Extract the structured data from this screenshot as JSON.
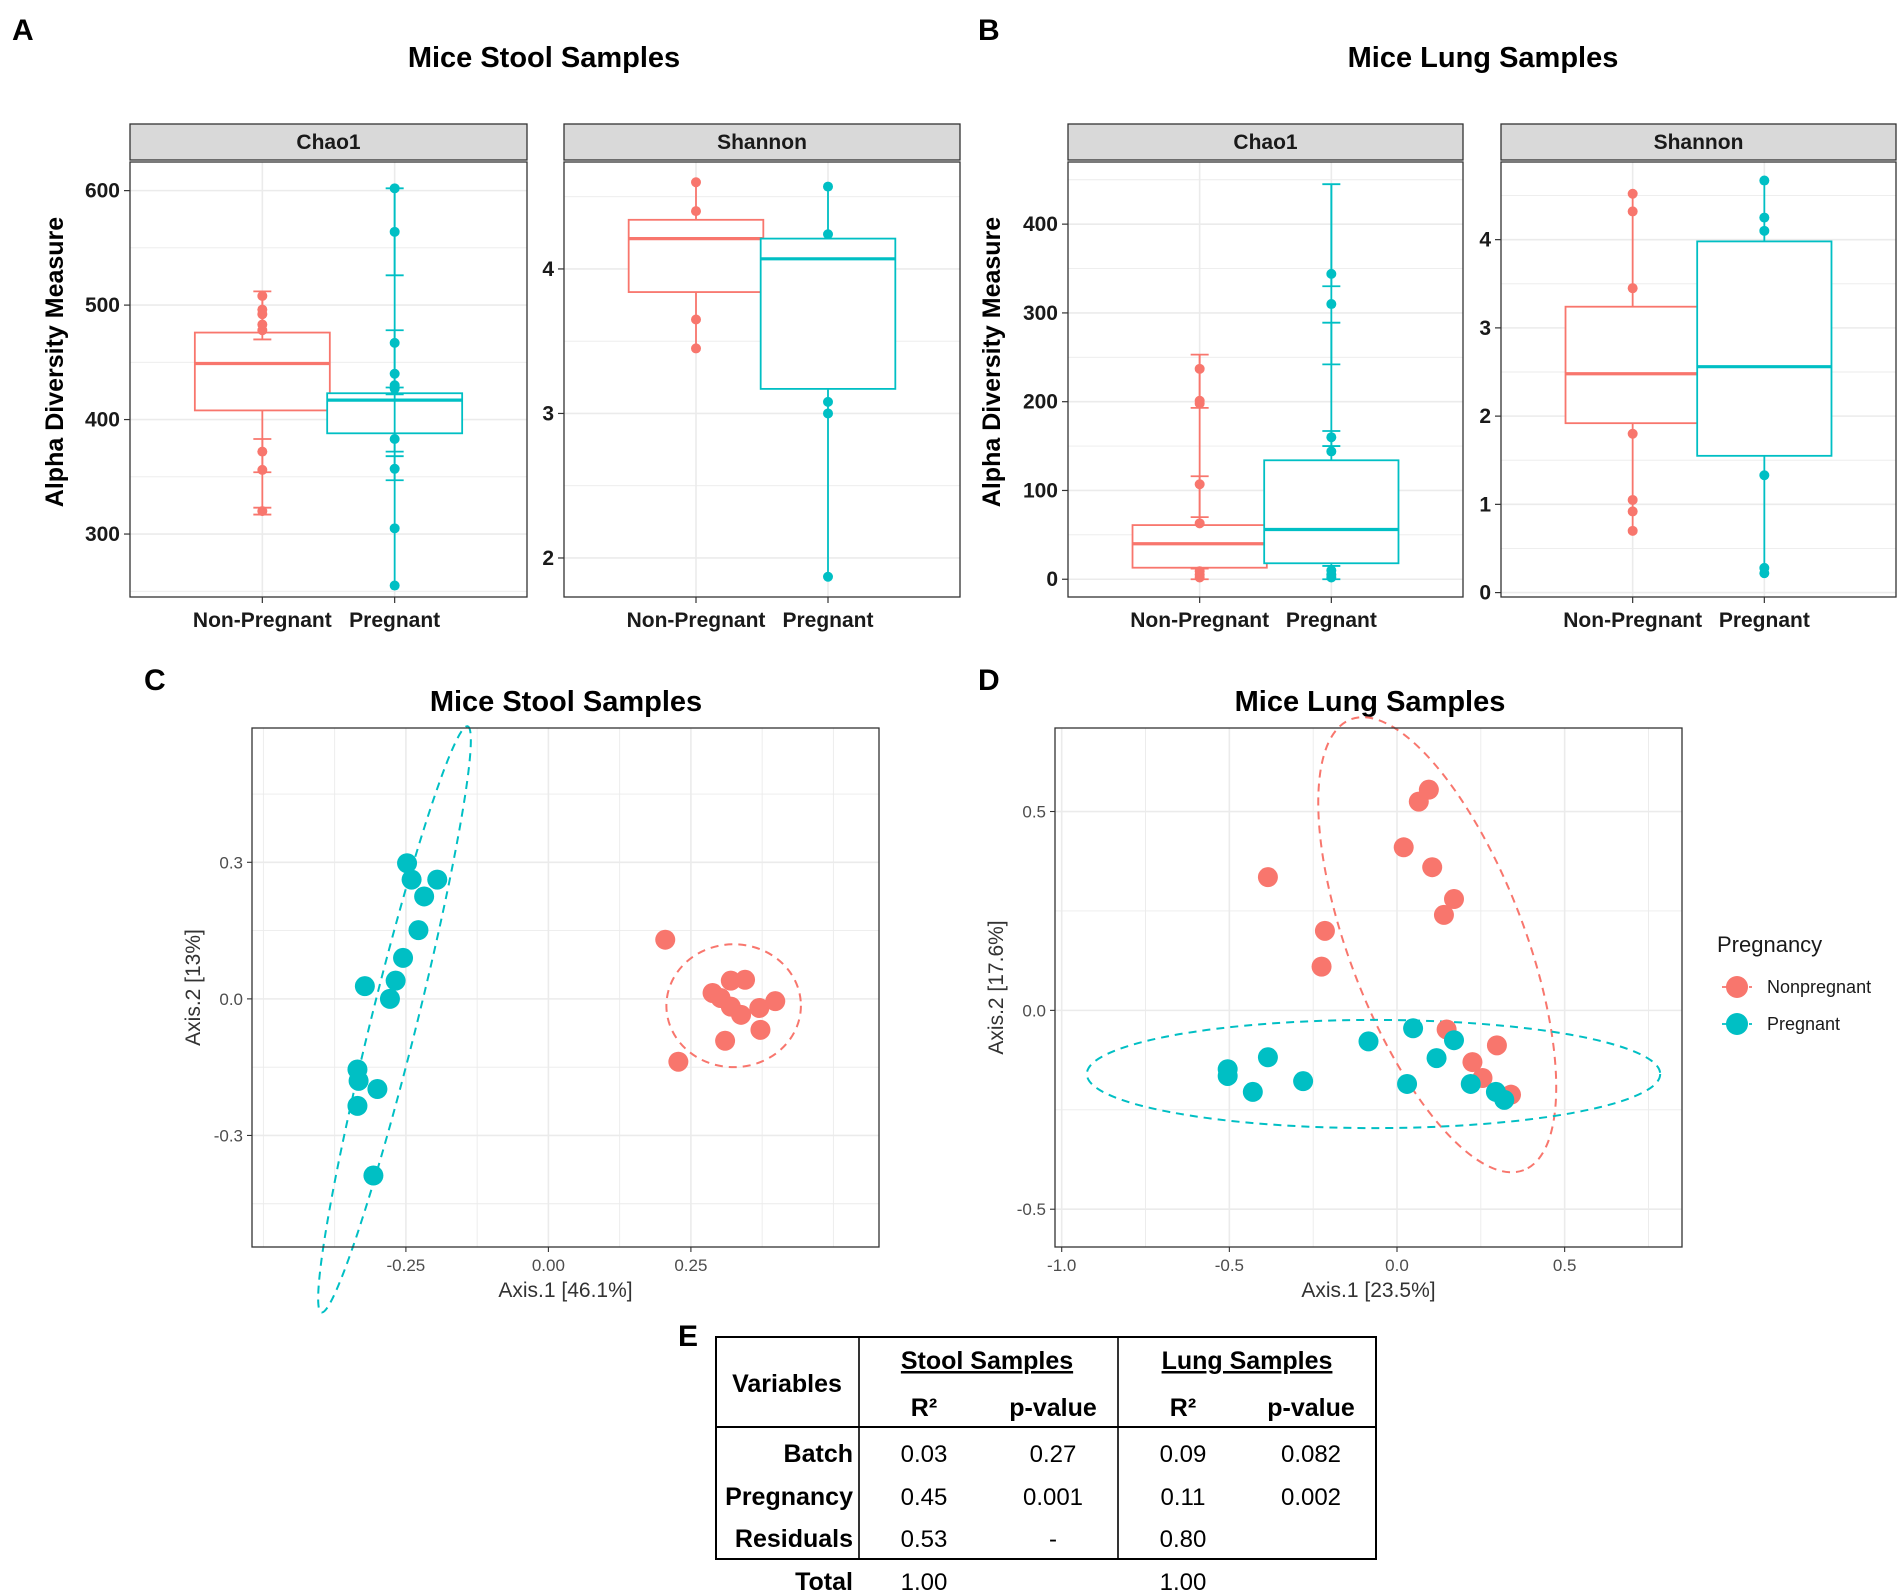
{
  "colors": {
    "nonpregnant": "#F8766D",
    "pregnant": "#00BFC4",
    "strip_bg": "#D9D9D9",
    "grid": "#EBEBEB"
  },
  "panels": {
    "A": {
      "letter": "A",
      "title": "Mice Stool Samples"
    },
    "B": {
      "letter": "B",
      "title": "Mice Lung Samples"
    },
    "C": {
      "letter": "C",
      "title": "Mice Stool Samples"
    },
    "D": {
      "letter": "D",
      "title": "Mice Lung Samples"
    },
    "E": {
      "letter": "E"
    }
  },
  "chart_data": [
    {
      "id": "A_chao1",
      "type": "box",
      "panel": "A",
      "facet": "Chao1",
      "ylabel": "Alpha Diversity Measure",
      "ylim": [
        245,
        625
      ],
      "yticks": [
        300,
        400,
        500,
        600
      ],
      "ytick_labels": [
        "300",
        "400",
        "500",
        "600"
      ],
      "categories": [
        "Non-Pregnant",
        "Pregnant"
      ],
      "boxes": [
        {
          "group": "Non-Pregnant",
          "q1": 408,
          "median": 449,
          "q3": 476,
          "whisker_low": 320,
          "whisker_high": 511,
          "points": [
            320,
            356,
            372,
            478,
            483,
            492,
            496,
            508
          ],
          "error_caps": [
            [
              317,
              323
            ],
            [
              354,
              383
            ],
            [
              470,
              512
            ]
          ]
        },
        {
          "group": "Pregnant",
          "q1": 388,
          "median": 417,
          "q3": 423,
          "whisker_low": 255,
          "whisker_high": 602,
          "points": [
            255,
            305,
            357,
            383,
            427,
            430,
            440,
            467,
            564,
            602
          ],
          "error_caps": [
            [
              347,
              368
            ],
            [
              372,
              422
            ],
            [
              428,
              478
            ],
            [
              526,
              602
            ]
          ]
        }
      ]
    },
    {
      "id": "A_shannon",
      "type": "box",
      "panel": "A",
      "facet": "Shannon",
      "ylim": [
        1.73,
        4.74
      ],
      "yticks": [
        2,
        3,
        4
      ],
      "ytick_labels": [
        "2",
        "3",
        "4"
      ],
      "categories": [
        "Non-Pregnant",
        "Pregnant"
      ],
      "boxes": [
        {
          "group": "Non-Pregnant",
          "q1": 3.84,
          "median": 4.21,
          "q3": 4.34,
          "whisker_low": 3.45,
          "whisker_high": 4.6,
          "points": [
            3.45,
            3.65,
            4.4,
            4.6
          ],
          "error_caps": []
        },
        {
          "group": "Pregnant",
          "q1": 3.17,
          "median": 4.07,
          "q3": 4.21,
          "whisker_low": 1.87,
          "whisker_high": 4.57,
          "points": [
            1.87,
            3.0,
            3.08,
            4.24,
            4.57
          ],
          "error_caps": []
        }
      ]
    },
    {
      "id": "B_chao1",
      "type": "box",
      "panel": "B",
      "facet": "Chao1",
      "ylabel": "Alpha Diversity Measure",
      "ylim": [
        -20,
        470
      ],
      "yticks": [
        0,
        100,
        200,
        300,
        400
      ],
      "ytick_labels": [
        "0",
        "100",
        "200",
        "300",
        "400"
      ],
      "categories": [
        "Non-Pregnant",
        "Pregnant"
      ],
      "boxes": [
        {
          "group": "Non-Pregnant",
          "q1": 13,
          "median": 40,
          "q3": 61,
          "whisker_low": 0,
          "whisker_high": 253,
          "points": [
            2,
            5,
            9,
            63,
            107,
            198,
            201,
            237
          ],
          "error_caps": [
            [
              0,
              12
            ],
            [
              70,
              116
            ],
            [
              193,
              253
            ]
          ]
        },
        {
          "group": "Pregnant",
          "q1": 18,
          "median": 56,
          "q3": 134,
          "whisker_low": 0,
          "whisker_high": 445,
          "points": [
            2,
            5,
            10,
            144,
            160,
            310,
            344
          ],
          "error_caps": [
            [
              0,
              15
            ],
            [
              150,
              167
            ],
            [
              242,
              289
            ],
            [
              330,
              445
            ]
          ]
        }
      ]
    },
    {
      "id": "B_shannon",
      "type": "box",
      "panel": "B",
      "facet": "Shannon",
      "ylim": [
        -0.05,
        4.88
      ],
      "yticks": [
        0,
        1,
        2,
        3,
        4
      ],
      "ytick_labels": [
        "0",
        "1",
        "2",
        "3",
        "4"
      ],
      "categories": [
        "Non-Pregnant",
        "Pregnant"
      ],
      "boxes": [
        {
          "group": "Non-Pregnant",
          "q1": 1.92,
          "median": 2.48,
          "q3": 3.24,
          "whisker_low": 0.7,
          "whisker_high": 4.52,
          "points": [
            0.7,
            0.92,
            1.05,
            1.8,
            3.45,
            4.32,
            4.52
          ],
          "error_caps": []
        },
        {
          "group": "Pregnant",
          "q1": 1.55,
          "median": 2.56,
          "q3": 3.98,
          "whisker_low": 0.22,
          "whisker_high": 4.67,
          "points": [
            0.22,
            0.28,
            1.33,
            4.1,
            4.25,
            4.67
          ],
          "error_caps": []
        }
      ]
    },
    {
      "id": "C_pcoa",
      "type": "scatter",
      "panel": "C",
      "xlabel": "Axis.1   [46.1%]",
      "ylabel": "Axis.2   [13%]",
      "xlim": [
        -0.52,
        0.58
      ],
      "ylim": [
        -0.545,
        0.595
      ],
      "xticks": [
        -0.25,
        0.0,
        0.25
      ],
      "xtick_labels": [
        "-0.25",
        "0.00",
        "0.25"
      ],
      "yticks": [
        -0.3,
        0.0,
        0.3
      ],
      "ytick_labels": [
        "-0.3",
        "0.0",
        "0.3"
      ],
      "series": [
        {
          "name": "Pregnant",
          "points": [
            [
              -0.248,
              0.298
            ],
            [
              -0.24,
              0.262
            ],
            [
              -0.195,
              0.262
            ],
            [
              -0.218,
              0.225
            ],
            [
              -0.228,
              0.151
            ],
            [
              -0.255,
              0.09
            ],
            [
              -0.322,
              0.028
            ],
            [
              -0.268,
              0.04
            ],
            [
              -0.278,
              0.0
            ],
            [
              -0.335,
              -0.155
            ],
            [
              -0.333,
              -0.18
            ],
            [
              -0.3,
              -0.198
            ],
            [
              -0.335,
              -0.235
            ],
            [
              -0.307,
              -0.388
            ]
          ],
          "ellipse": {
            "cx": -0.27,
            "cy": -0.045,
            "rx": 0.53,
            "ry": 0.05,
            "angle_deg": 76
          }
        },
        {
          "name": "Nonpregnant",
          "points": [
            [
              0.205,
              0.13
            ],
            [
              0.288,
              0.013
            ],
            [
              0.32,
              0.04
            ],
            [
              0.345,
              0.042
            ],
            [
              0.302,
              0.002
            ],
            [
              0.32,
              -0.017
            ],
            [
              0.338,
              -0.035
            ],
            [
              0.37,
              -0.02
            ],
            [
              0.398,
              -0.005
            ],
            [
              0.31,
              -0.092
            ],
            [
              0.372,
              -0.068
            ],
            [
              0.228,
              -0.138
            ]
          ],
          "ellipse": {
            "cx": 0.325,
            "cy": -0.015,
            "rx": 0.118,
            "ry": 0.135,
            "angle_deg": 0
          }
        }
      ]
    },
    {
      "id": "D_pcoa",
      "type": "scatter",
      "panel": "D",
      "xlabel": "Axis.1   [23.5%]",
      "ylabel": "Axis.2   [17.6%]",
      "xlim": [
        -1.02,
        0.85
      ],
      "ylim": [
        -0.595,
        0.71
      ],
      "xticks": [
        -1.0,
        -0.5,
        0.0,
        0.5
      ],
      "xtick_labels": [
        "-1.0",
        "-0.5",
        "0.0",
        "0.5"
      ],
      "yticks": [
        -0.5,
        0.0,
        0.5
      ],
      "ytick_labels": [
        "-0.5",
        "0.0",
        "0.5"
      ],
      "series": [
        {
          "name": "Nonpregnant",
          "points": [
            [
              0.095,
              0.555
            ],
            [
              0.065,
              0.525
            ],
            [
              0.02,
              0.41
            ],
            [
              0.105,
              0.36
            ],
            [
              0.17,
              0.28
            ],
            [
              0.14,
              0.24
            ],
            [
              -0.385,
              0.335
            ],
            [
              -0.215,
              0.2
            ],
            [
              -0.225,
              0.11
            ],
            [
              0.148,
              -0.048
            ],
            [
              0.298,
              -0.088
            ],
            [
              0.225,
              -0.13
            ],
            [
              0.255,
              -0.17
            ],
            [
              0.34,
              -0.212
            ]
          ],
          "ellipse": {
            "cx": 0.12,
            "cy": 0.165,
            "rx": 0.72,
            "ry": 0.22,
            "angle_deg": -69
          }
        },
        {
          "name": "Pregnant",
          "points": [
            [
              -0.505,
              -0.148
            ],
            [
              -0.505,
              -0.165
            ],
            [
              -0.385,
              -0.118
            ],
            [
              -0.43,
              -0.205
            ],
            [
              -0.28,
              -0.178
            ],
            [
              -0.085,
              -0.078
            ],
            [
              0.048,
              -0.045
            ],
            [
              0.17,
              -0.075
            ],
            [
              0.118,
              -0.12
            ],
            [
              0.03,
              -0.185
            ],
            [
              0.22,
              -0.185
            ],
            [
              0.295,
              -0.205
            ],
            [
              0.32,
              -0.225
            ]
          ],
          "ellipse": {
            "cx": -0.07,
            "cy": -0.16,
            "rx": 0.855,
            "ry": 0.136,
            "angle_deg": 0
          }
        }
      ]
    },
    {
      "id": "E_table",
      "type": "table",
      "panel": "E",
      "header": {
        "variables": "Variables",
        "stool": "Stool Samples",
        "lung": "Lung Samples",
        "r2": "R²",
        "pvalue": "p-value"
      },
      "rows": [
        {
          "label": "Batch",
          "stool_r2": "0.03",
          "stool_p": "0.27",
          "lung_r2": "0.09",
          "lung_p": "0.082"
        },
        {
          "label": "Pregnancy",
          "stool_r2": "0.45",
          "stool_p": "0.001",
          "lung_r2": "0.11",
          "lung_p": "0.002"
        },
        {
          "label": "Residuals",
          "stool_r2": "0.53",
          "stool_p": "-",
          "lung_r2": "0.80",
          "lung_p": ""
        },
        {
          "label": "Total",
          "stool_r2": "1.00",
          "stool_p": "",
          "lung_r2": "1.00",
          "lung_p": ""
        }
      ]
    }
  ],
  "legend": {
    "title": "Pregnancy",
    "items": [
      "Nonpregnant",
      "Pregnant"
    ]
  }
}
